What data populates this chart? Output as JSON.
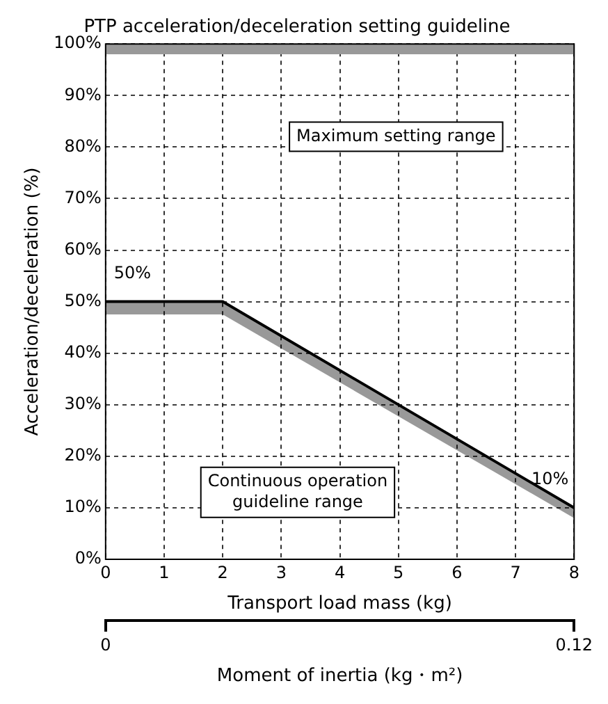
{
  "chart_data": {
    "type": "line",
    "title": "PTP acceleration/deceleration setting guideline",
    "xlabel": "Transport load mass (kg)",
    "ylabel": "Acceleration/deceleration (%)",
    "x2label": "Moment of inertia (kg・m²)",
    "x": [
      0,
      2,
      8
    ],
    "series": [
      {
        "color": "#000000",
        "values": [
          50,
          50,
          10
        ],
        "lower": [
          47.5,
          47.5,
          8
        ],
        "upper": [
          50,
          50,
          10
        ],
        "value_labels": [
          "50%",
          null,
          "10%"
        ]
      }
    ],
    "xlim": [
      0,
      8
    ],
    "xticks": [
      0,
      1,
      2,
      3,
      4,
      5,
      6,
      7,
      8
    ],
    "ylim": [
      0,
      100
    ],
    "yticks": [
      {
        "value": 0,
        "label": "0%"
      },
      {
        "value": 10,
        "label": "10%"
      },
      {
        "value": 20,
        "label": "20%"
      },
      {
        "value": 30,
        "label": "30%"
      },
      {
        "value": 40,
        "label": "40%"
      },
      {
        "value": 50,
        "label": "50%"
      },
      {
        "value": 60,
        "label": "60%"
      },
      {
        "value": 70,
        "label": "70%"
      },
      {
        "value": 80,
        "label": "80%"
      },
      {
        "value": 90,
        "label": "90%"
      },
      {
        "value": 100,
        "label": "100%"
      }
    ],
    "x2lim": [
      0,
      0.12
    ],
    "x2ticks": [
      0,
      0.12
    ],
    "bands": [
      {
        "axis": "y",
        "from": 98,
        "to": 100,
        "color": "#999999"
      }
    ],
    "annotations": [
      "Maximum setting range",
      "Continuous operation guideline range"
    ],
    "grid": true,
    "legend": false,
    "marker": "none",
    "line_style": "solid"
  }
}
